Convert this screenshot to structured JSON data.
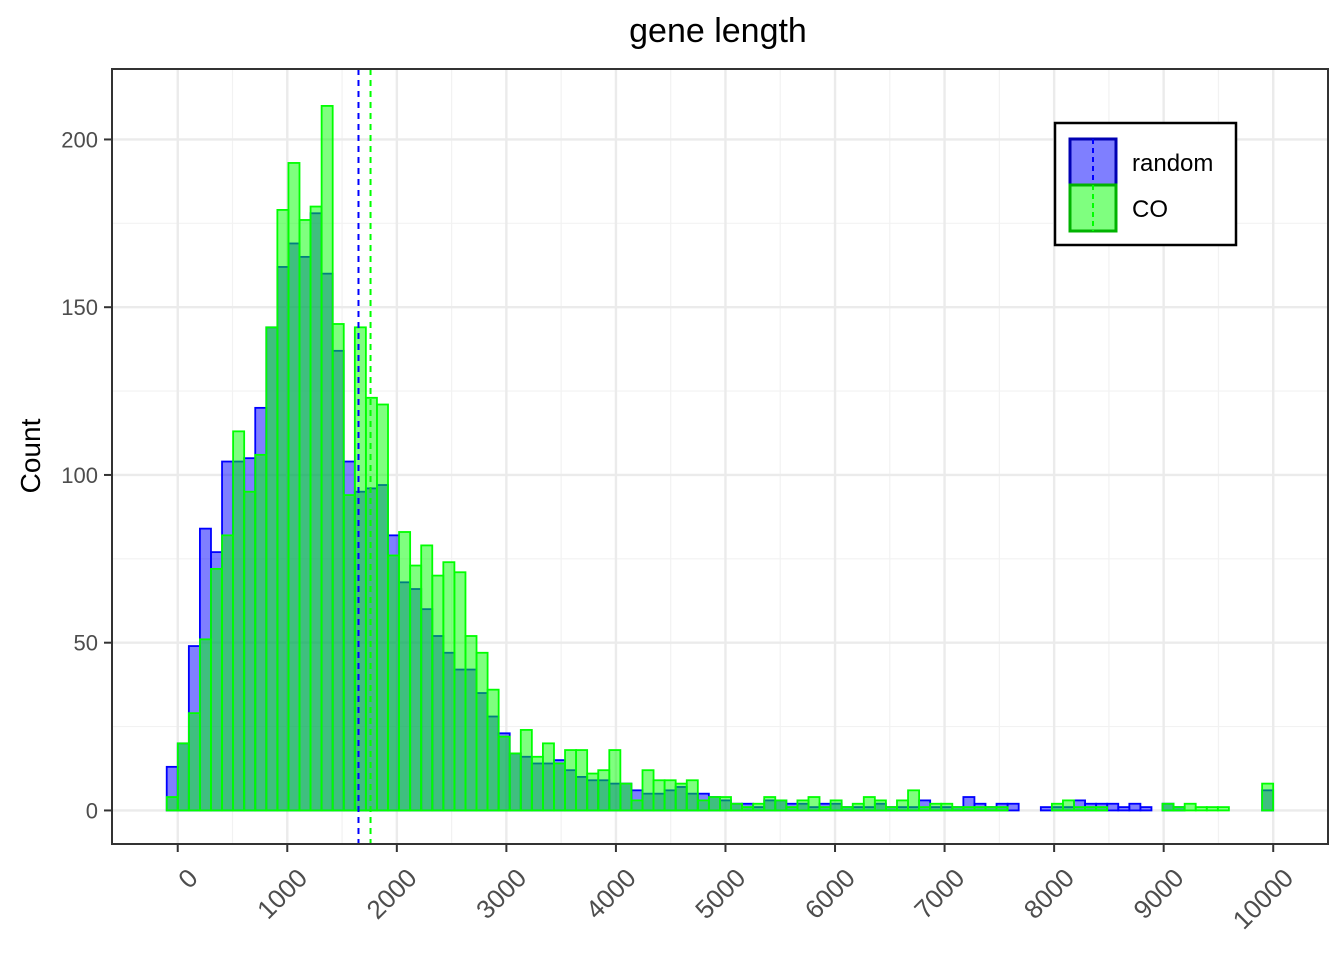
{
  "chart_data": {
    "type": "bar",
    "title": "gene length",
    "xlabel": "",
    "ylabel": "Count",
    "xlim": [
      -600,
      10500
    ],
    "ylim": [
      -10,
      221
    ],
    "x_ticks": [
      0,
      1000,
      2000,
      3000,
      4000,
      5000,
      6000,
      7000,
      8000,
      9000,
      10000
    ],
    "x_tick_labels": [
      "0",
      "1000",
      "2000",
      "3000",
      "4000",
      "5000",
      "6000",
      "7000",
      "8000",
      "9000",
      "10000"
    ],
    "y_ticks": [
      0,
      50,
      100,
      150,
      200
    ],
    "y_tick_labels": [
      "0",
      "50",
      "100",
      "150",
      "200"
    ],
    "grid": true,
    "legend_position": "top-right",
    "bin_width": 101,
    "x": [
      -50,
      51,
      152,
      253,
      354,
      455,
      556,
      657,
      758,
      859,
      960,
      1061,
      1162,
      1263,
      1364,
      1465,
      1566,
      1667,
      1768,
      1869,
      1970,
      2071,
      2172,
      2273,
      2374,
      2475,
      2576,
      2677,
      2778,
      2879,
      2980,
      3081,
      3182,
      3283,
      3384,
      3485,
      3586,
      3687,
      3788,
      3889,
      3990,
      4091,
      4192,
      4293,
      4394,
      4495,
      4596,
      4697,
      4798,
      4899,
      5000,
      5101,
      5202,
      5303,
      5404,
      5505,
      5606,
      5707,
      5808,
      5909,
      6010,
      6111,
      6212,
      6313,
      6414,
      6515,
      6616,
      6717,
      6818,
      6919,
      7020,
      7121,
      7222,
      7323,
      7424,
      7525,
      7626,
      7727,
      7828,
      7929,
      8030,
      8131,
      8232,
      8333,
      8434,
      8535,
      8636,
      8737,
      8838,
      8939,
      9040,
      9141,
      9242,
      9343,
      9444,
      9545,
      9646,
      9747,
      9848,
      9949
    ],
    "series": [
      {
        "name": "random",
        "color": "#0000ff",
        "fill": "#7f7fff",
        "mean_line": 1650,
        "values": [
          13,
          20,
          49,
          84,
          77,
          104,
          104,
          105,
          120,
          144,
          162,
          169,
          165,
          178,
          160,
          137,
          104,
          95,
          96,
          97,
          82,
          68,
          66,
          60,
          52,
          47,
          42,
          42,
          35,
          28,
          23,
          17,
          16,
          14,
          14,
          15,
          12,
          10,
          9,
          9,
          8,
          8,
          6,
          5,
          5,
          6,
          7,
          5,
          5,
          4,
          3,
          2,
          2,
          1,
          3,
          3,
          2,
          2,
          1,
          2,
          2,
          1,
          1,
          1,
          2,
          1,
          1,
          1,
          3,
          1,
          1,
          1,
          4,
          2,
          1,
          2,
          2,
          0,
          0,
          1,
          1,
          1,
          3,
          2,
          2,
          2,
          1,
          2,
          1,
          0,
          2,
          1,
          0,
          0,
          0,
          0,
          0,
          0,
          0,
          6
        ]
      },
      {
        "name": "CO",
        "color": "#00ff00",
        "fill": "#7fff7f",
        "mean_line": 1760,
        "values": [
          4,
          20,
          29,
          51,
          72,
          82,
          113,
          95,
          106,
          144,
          179,
          193,
          176,
          180,
          210,
          145,
          94,
          144,
          123,
          121,
          76,
          83,
          73,
          79,
          70,
          74,
          71,
          52,
          47,
          36,
          22,
          17,
          24,
          16,
          20,
          14,
          18,
          18,
          11,
          12,
          18,
          8,
          3,
          12,
          9,
          9,
          8,
          9,
          3,
          4,
          4,
          2,
          1,
          2,
          4,
          3,
          1,
          3,
          4,
          1,
          3,
          1,
          2,
          4,
          3,
          1,
          3,
          6,
          1,
          2,
          2,
          1,
          1,
          1,
          1,
          1,
          0,
          0,
          0,
          0,
          2,
          3,
          1,
          1,
          1,
          0,
          0,
          0,
          0,
          0,
          2,
          1,
          2,
          1,
          1,
          1,
          0,
          0,
          0,
          8
        ]
      }
    ]
  }
}
